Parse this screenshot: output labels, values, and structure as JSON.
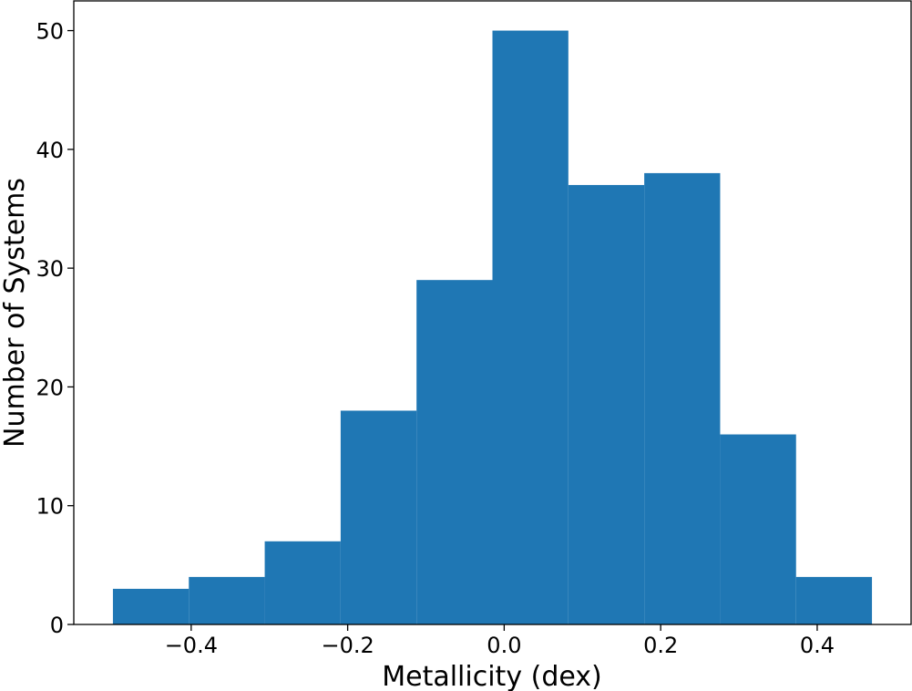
{
  "chart_data": {
    "type": "bar",
    "title": "",
    "xlabel": "Metallicity (dex)",
    "ylabel": "Number of Systems",
    "xlim": [
      -0.55,
      0.52
    ],
    "ylim": [
      0,
      52.5
    ],
    "grid": false,
    "bar_color": "#1f77b4",
    "bins": [
      {
        "x0": -0.5,
        "x1": -0.403,
        "count": 3
      },
      {
        "x0": -0.403,
        "x1": -0.306,
        "count": 4
      },
      {
        "x0": -0.306,
        "x1": -0.209,
        "count": 7
      },
      {
        "x0": -0.209,
        "x1": -0.112,
        "count": 18
      },
      {
        "x0": -0.112,
        "x1": -0.015,
        "count": 29
      },
      {
        "x0": -0.015,
        "x1": 0.082,
        "count": 50
      },
      {
        "x0": 0.082,
        "x1": 0.179,
        "count": 37
      },
      {
        "x0": 0.179,
        "x1": 0.276,
        "count": 38
      },
      {
        "x0": 0.276,
        "x1": 0.373,
        "count": 16
      },
      {
        "x0": 0.373,
        "x1": 0.47,
        "count": 4
      }
    ],
    "x_ticks": [
      {
        "value": -0.4,
        "label": "−0.4"
      },
      {
        "value": -0.2,
        "label": "−0.2"
      },
      {
        "value": 0.0,
        "label": "0.0"
      },
      {
        "value": 0.2,
        "label": "0.2"
      },
      {
        "value": 0.4,
        "label": "0.4"
      }
    ],
    "y_ticks": [
      {
        "value": 0,
        "label": "0"
      },
      {
        "value": 10,
        "label": "10"
      },
      {
        "value": 20,
        "label": "20"
      },
      {
        "value": 30,
        "label": "30"
      },
      {
        "value": 40,
        "label": "40"
      },
      {
        "value": 50,
        "label": "50"
      }
    ]
  }
}
